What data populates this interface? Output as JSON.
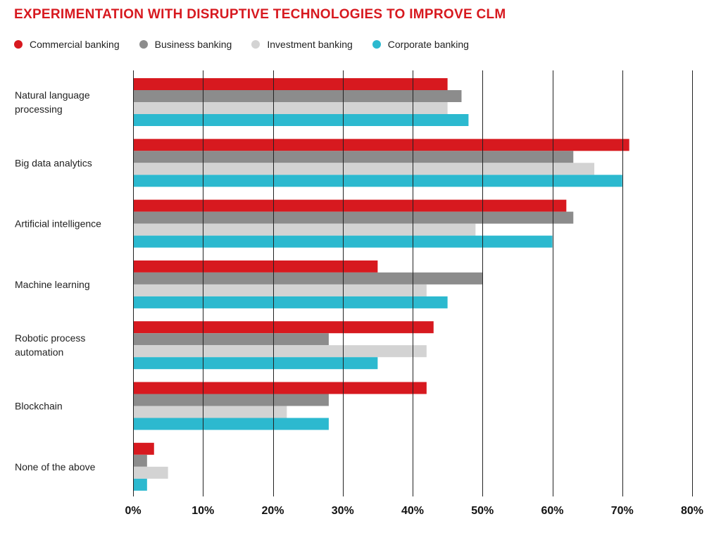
{
  "chart_data": {
    "type": "bar",
    "orientation": "horizontal",
    "title": "EXPERIMENTATION WITH DISRUPTIVE TECHNOLOGIES TO IMPROVE CLM",
    "categories": [
      "Natural language processing",
      "Big data analytics",
      "Artificial intelligence",
      "Machine learning",
      "Robotic process automation",
      "Blockchain",
      "None of the above"
    ],
    "series": [
      {
        "name": "Commercial banking",
        "color": "#d7191f",
        "values": [
          45,
          71,
          62,
          35,
          43,
          42,
          3
        ]
      },
      {
        "name": "Business banking",
        "color": "#8c8c8c",
        "values": [
          47,
          63,
          63,
          50,
          28,
          28,
          2
        ]
      },
      {
        "name": "Investment banking",
        "color": "#d3d3d3",
        "values": [
          45,
          66,
          49,
          42,
          42,
          22,
          5
        ]
      },
      {
        "name": "Corporate banking",
        "color": "#2cb9cf",
        "values": [
          48,
          70,
          60,
          45,
          35,
          28,
          2
        ]
      }
    ],
    "xlim": [
      0,
      80
    ],
    "ticks": [
      "0%",
      "10%",
      "20%",
      "30%",
      "40%",
      "50%",
      "60%",
      "70%",
      "80%"
    ],
    "tick_values": [
      0,
      10,
      20,
      30,
      40,
      50,
      60,
      70,
      80
    ],
    "grid": true,
    "legend_position": "top-left"
  }
}
